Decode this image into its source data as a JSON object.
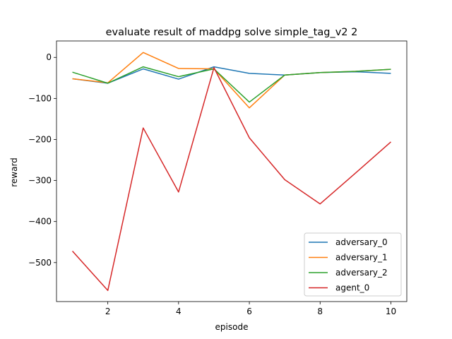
{
  "chart_data": {
    "type": "line",
    "title": "evaluate result of maddpg solve simple_tag_v2 2",
    "xlabel": "episode",
    "ylabel": "reward",
    "xlim": [
      0.55,
      10.45
    ],
    "ylim": [
      -595,
      40
    ],
    "xticks": [
      2,
      4,
      6,
      8,
      10
    ],
    "yticks": [
      0,
      -100,
      -200,
      -300,
      -400,
      -500
    ],
    "grid": false,
    "legend_position": "lower-right",
    "x": [
      1,
      2,
      3,
      4,
      5,
      6,
      7,
      8,
      9,
      10
    ],
    "series": [
      {
        "name": "adversary_0",
        "color": "#1f77b4",
        "values": [
          -52,
          -63,
          -28,
          -53,
          -23,
          -39,
          -43,
          -37,
          -35,
          -39
        ]
      },
      {
        "name": "adversary_1",
        "color": "#ff7f0e",
        "values": [
          -52,
          -62,
          12,
          -27,
          -28,
          -123,
          -43,
          -37,
          -34,
          -29
        ]
      },
      {
        "name": "adversary_2",
        "color": "#2ca02c",
        "values": [
          -36,
          -63,
          -23,
          -47,
          -28,
          -109,
          -43,
          -37,
          -34,
          -29
        ]
      },
      {
        "name": "agent_0",
        "color": "#d62728",
        "values": [
          -472,
          -568,
          -172,
          -328,
          -25,
          -196,
          -298,
          -357,
          -282,
          -206
        ]
      }
    ]
  }
}
